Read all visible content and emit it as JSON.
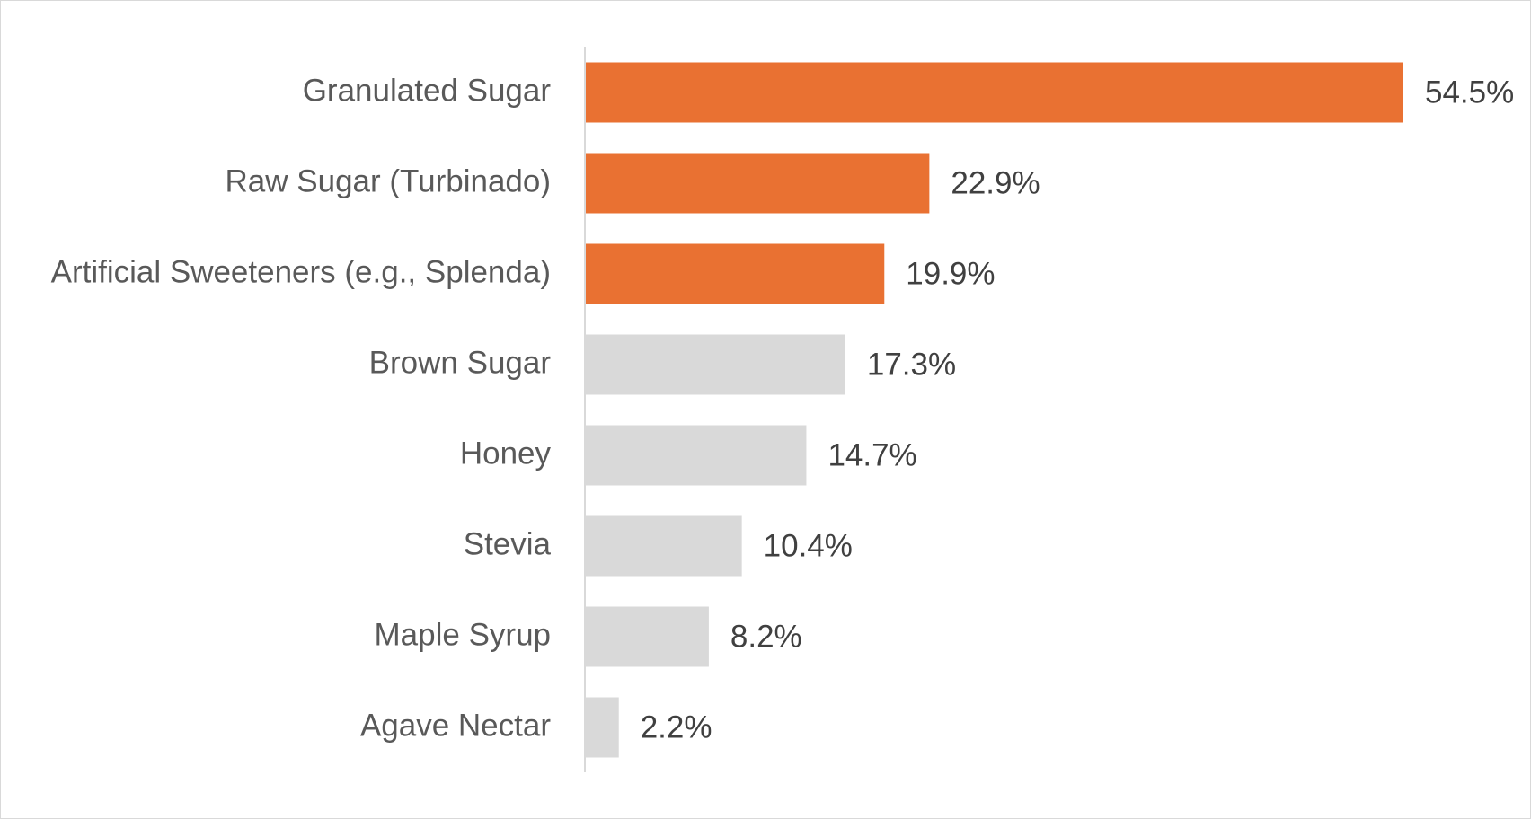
{
  "chart_data": {
    "type": "bar",
    "orientation": "horizontal",
    "categories": [
      "Granulated Sugar",
      "Raw Sugar (Turbinado)",
      "Artificial Sweeteners (e.g., Splenda)",
      "Brown Sugar",
      "Honey",
      "Stevia",
      "Maple Syrup",
      "Agave Nectar"
    ],
    "values": [
      54.5,
      22.9,
      19.9,
      17.3,
      14.7,
      10.4,
      8.2,
      2.2
    ],
    "value_labels": [
      "54.5%",
      "22.9%",
      "19.9%",
      "17.3%",
      "14.7%",
      "10.4%",
      "8.2%",
      "2.2%"
    ],
    "highlighted": [
      true,
      true,
      true,
      false,
      false,
      false,
      false,
      false
    ],
    "unit": "%",
    "xlim": [
      0,
      54.5
    ],
    "grid": false,
    "legend": "none",
    "colors": {
      "highlight": "#e97132",
      "default": "#d9d9d9",
      "axis": "#d9d9d9"
    }
  }
}
